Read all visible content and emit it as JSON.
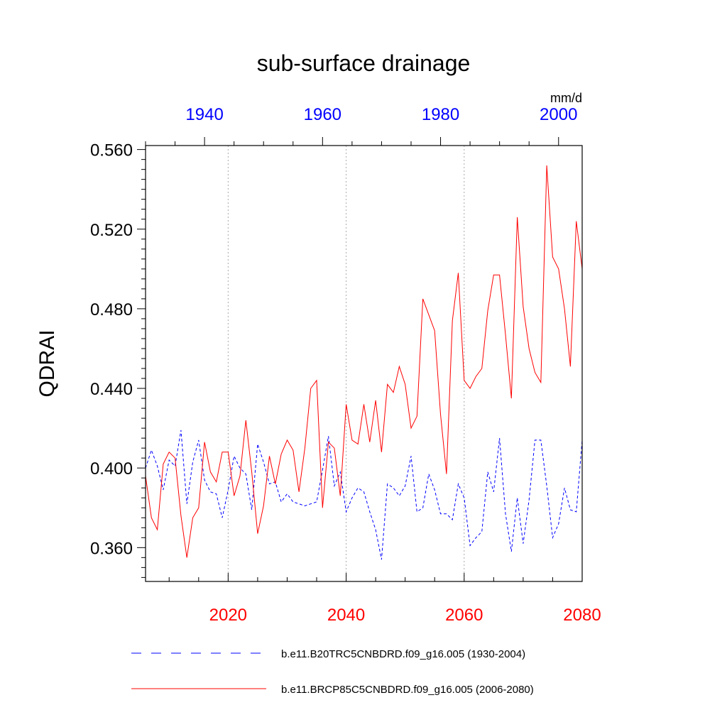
{
  "chart_data": {
    "type": "line",
    "title": "sub-surface drainage",
    "ylabel": "QDRAI",
    "units": "mm/d",
    "ylim": [
      0.343,
      0.562
    ],
    "y_ticks": [
      "0.360",
      "0.400",
      "0.440",
      "0.480",
      "0.520",
      "0.560"
    ],
    "grid": "vertical dotted at bottom-axis major ticks",
    "legend_position": "bottom",
    "top_axis": {
      "xlim": [
        1930,
        2004
      ],
      "ticks": [
        "1940",
        "1960",
        "1980",
        "2000"
      ],
      "color": "#0000ff"
    },
    "bottom_axis": {
      "xlim": [
        2006,
        2080
      ],
      "ticks": [
        "2020",
        "2040",
        "2060",
        "2080"
      ],
      "color": "#ff0000"
    },
    "series": [
      {
        "name": "b.e11.B20TRC5CNBDRD.f09_g16.005 (1930-2004)",
        "axis": "top",
        "color": "#0000ff",
        "style": "dashed",
        "x": [
          1930,
          1931,
          1932,
          1933,
          1934,
          1935,
          1936,
          1937,
          1938,
          1939,
          1940,
          1941,
          1942,
          1943,
          1944,
          1945,
          1946,
          1947,
          1948,
          1949,
          1950,
          1951,
          1952,
          1953,
          1954,
          1955,
          1956,
          1957,
          1958,
          1959,
          1960,
          1961,
          1962,
          1963,
          1964,
          1965,
          1966,
          1967,
          1968,
          1969,
          1970,
          1971,
          1972,
          1973,
          1974,
          1975,
          1976,
          1977,
          1978,
          1979,
          1980,
          1981,
          1982,
          1983,
          1984,
          1985,
          1986,
          1987,
          1988,
          1989,
          1990,
          1991,
          1992,
          1993,
          1994,
          1995,
          1996,
          1997,
          1998,
          1999,
          2000,
          2001,
          2002,
          2003,
          2004
        ],
        "values": [
          0.4,
          0.409,
          0.401,
          0.389,
          0.404,
          0.401,
          0.419,
          0.382,
          0.403,
          0.414,
          0.394,
          0.388,
          0.387,
          0.375,
          0.389,
          0.406,
          0.4,
          0.397,
          0.379,
          0.412,
          0.403,
          0.392,
          0.393,
          0.383,
          0.387,
          0.383,
          0.382,
          0.381,
          0.382,
          0.383,
          0.399,
          0.416,
          0.391,
          0.398,
          0.378,
          0.385,
          0.39,
          0.388,
          0.378,
          0.369,
          0.354,
          0.392,
          0.39,
          0.386,
          0.391,
          0.406,
          0.378,
          0.38,
          0.397,
          0.389,
          0.377,
          0.377,
          0.374,
          0.392,
          0.385,
          0.361,
          0.365,
          0.368,
          0.398,
          0.388,
          0.415,
          0.377,
          0.358,
          0.385,
          0.362,
          0.384,
          0.414,
          0.414,
          0.391,
          0.365,
          0.372,
          0.39,
          0.379,
          0.378,
          0.414
        ]
      },
      {
        "name": "b.e11.BRCP85C5CNBDRD.f09_g16.005 (2006-2080)",
        "axis": "bottom",
        "color": "#ff0000",
        "style": "solid",
        "x": [
          2006,
          2007,
          2008,
          2009,
          2010,
          2011,
          2012,
          2013,
          2014,
          2015,
          2016,
          2017,
          2018,
          2019,
          2020,
          2021,
          2022,
          2023,
          2024,
          2025,
          2026,
          2027,
          2028,
          2029,
          2030,
          2031,
          2032,
          2033,
          2034,
          2035,
          2036,
          2037,
          2038,
          2039,
          2040,
          2041,
          2042,
          2043,
          2044,
          2045,
          2046,
          2047,
          2048,
          2049,
          2050,
          2051,
          2052,
          2053,
          2054,
          2055,
          2056,
          2057,
          2058,
          2059,
          2060,
          2061,
          2062,
          2063,
          2064,
          2065,
          2066,
          2067,
          2068,
          2069,
          2070,
          2071,
          2072,
          2073,
          2074,
          2075,
          2076,
          2077,
          2078,
          2079,
          2080
        ],
        "values": [
          0.396,
          0.375,
          0.369,
          0.402,
          0.408,
          0.405,
          0.376,
          0.355,
          0.375,
          0.38,
          0.413,
          0.398,
          0.393,
          0.408,
          0.408,
          0.386,
          0.396,
          0.424,
          0.398,
          0.367,
          0.381,
          0.406,
          0.392,
          0.407,
          0.414,
          0.409,
          0.388,
          0.41,
          0.44,
          0.444,
          0.38,
          0.413,
          0.41,
          0.386,
          0.432,
          0.414,
          0.412,
          0.432,
          0.413,
          0.434,
          0.408,
          0.442,
          0.438,
          0.451,
          0.442,
          0.42,
          0.426,
          0.485,
          0.477,
          0.469,
          0.427,
          0.397,
          0.474,
          0.498,
          0.444,
          0.44,
          0.446,
          0.45,
          0.479,
          0.497,
          0.497,
          0.467,
          0.435,
          0.526,
          0.481,
          0.46,
          0.448,
          0.443,
          0.552,
          0.506,
          0.5,
          0.48,
          0.451,
          0.524,
          0.5
        ]
      }
    ]
  }
}
